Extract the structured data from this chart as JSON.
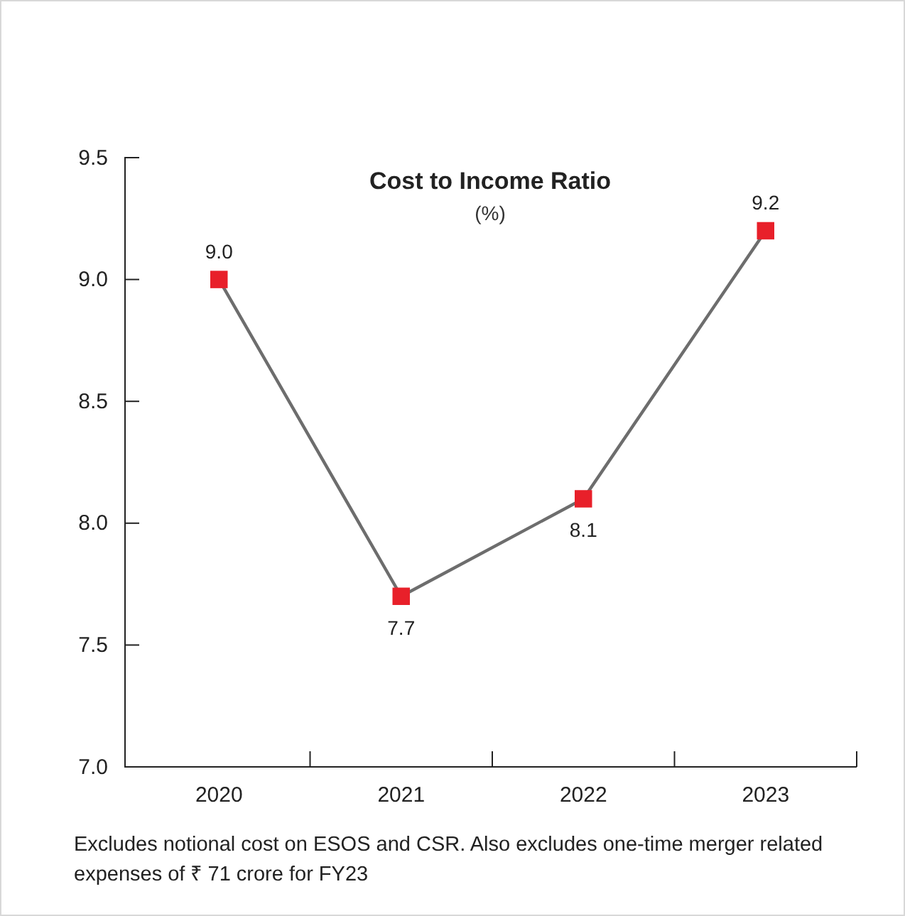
{
  "chart_data": {
    "type": "line",
    "title": "Cost to Income Ratio",
    "subtitle": "(%)",
    "categories": [
      "2020",
      "2021",
      "2022",
      "2023"
    ],
    "values": [
      9.0,
      7.7,
      8.1,
      9.2
    ],
    "value_labels": [
      "9.0",
      "7.7",
      "8.1",
      "9.2"
    ],
    "color": "#6d6d6d",
    "colors": [
      "#e8202a",
      "#e8202a",
      "#e8202a",
      "#e8202a"
    ],
    "marker": "square",
    "ylim": [
      7.0,
      9.5
    ],
    "yticks": [
      {
        "value": 7.0,
        "label": "7.0"
      },
      {
        "value": 7.5,
        "label": "7.5"
      },
      {
        "value": 8.0,
        "label": "8.0"
      },
      {
        "value": 8.5,
        "label": "8.5"
      },
      {
        "value": 9.0,
        "label": "9.0"
      },
      {
        "value": 9.5,
        "label": "9.5"
      }
    ],
    "grid": false,
    "annotations": [
      "Excludes notional cost on ESOS and CSR. Also excludes one-time merger related expenses of  ₹ 71 crore for FY23"
    ]
  }
}
